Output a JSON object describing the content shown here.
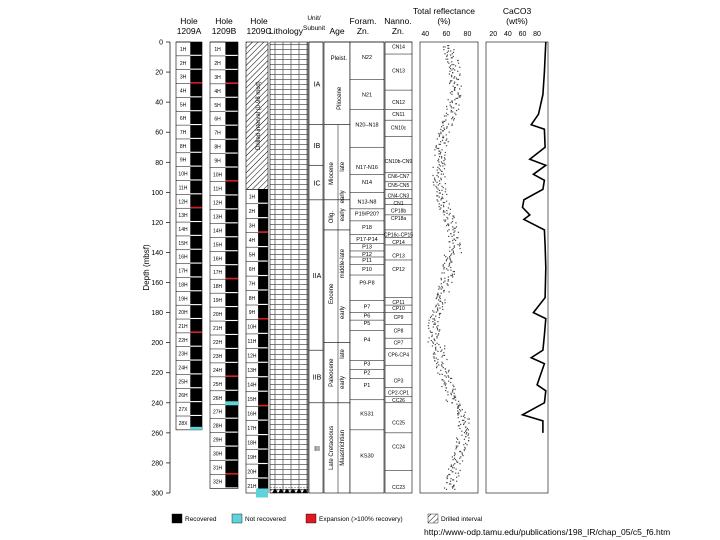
{
  "headers": {
    "hole_a": "Hole 1209A",
    "hole_b": "Hole 1209B",
    "hole_c": "Hole 1209C",
    "lithology": "Lithology",
    "unit_subunit": "Unit/ Subunit",
    "age": "Age",
    "foram_zn": "Foram. Zn.",
    "nanno_zn": "Nanno. Zn.",
    "total_reflectance": "Total reflectance (%)",
    "caco3": "CaCO3 (wt%)"
  },
  "depth_axis": {
    "label": "Depth (mbsf)",
    "ticks": [
      "0",
      "20",
      "40",
      "60",
      "80",
      "100",
      "120",
      "140",
      "160",
      "180",
      "200",
      "220",
      "240",
      "260",
      "280",
      "300"
    ]
  },
  "reflectance_ticks": [
    "40",
    "60",
    "80"
  ],
  "caco3_ticks": [
    "20",
    "40",
    "60",
    "80"
  ],
  "drilled_interval_label": "Drilled interval (0-98 mcd)",
  "cores": {
    "hole_a": [
      "1H",
      "2H",
      "3H",
      "4H",
      "5H",
      "6H",
      "7H",
      "8H",
      "9H",
      "10H",
      "11H",
      "12H",
      "13H",
      "14H",
      "15H",
      "16H",
      "17H",
      "18H",
      "19H",
      "20H",
      "21H",
      "22H",
      "23H",
      "24H",
      "25H",
      "26H",
      "27X",
      "28X"
    ],
    "hole_b": [
      "1H",
      "2H",
      "3H",
      "4H",
      "5H",
      "6H",
      "7H",
      "8H",
      "9H",
      "10H",
      "11H",
      "12H",
      "13H",
      "14H",
      "15H",
      "16H",
      "17H",
      "18H",
      "19H",
      "20H",
      "21H",
      "22H",
      "23H",
      "24H",
      "25H",
      "26H",
      "27H",
      "28H",
      "29H",
      "30H",
      "31H",
      "32H"
    ],
    "hole_c": [
      "1H",
      "2H",
      "3H",
      "4H",
      "5H",
      "6H",
      "7H",
      "8H",
      "9H",
      "10H",
      "11H",
      "12H",
      "13H",
      "14H",
      "15H",
      "16H",
      "17H",
      "18H",
      "19H",
      "20H",
      "21H"
    ]
  },
  "units": [
    "IA",
    "IB",
    "IC",
    "IIA",
    "IIB",
    "III"
  ],
  "ages": {
    "pleist": "Pleist.",
    "pliocene": "Pliocene",
    "miocene": "Miocene",
    "mio_late": "late",
    "mio_early": "early",
    "oligocene": "Olig.",
    "olig_early": "early",
    "eocene": "Eocene",
    "eoc_middle_late": "middle-late",
    "eoc_early": "early",
    "paleocene": "Paleocene",
    "pal_late": "late",
    "pal_early": "early",
    "late_cretaceous": "Late Cretaceous",
    "maastrichtian": "Maastrichtian"
  },
  "foram_zones": [
    "N22",
    "N21",
    "N20–N18",
    "N17-N16",
    "N14",
    "N13-N8",
    "P19/P20?",
    "P18",
    "P17-P14",
    "P13",
    "P12",
    "P11",
    "P10",
    "P9-P8",
    "P7",
    "P6",
    "P5",
    "P4",
    "P3",
    "P2",
    "P1",
    "KS31",
    "KS30"
  ],
  "nanno_zones": [
    "CN14",
    "CN13",
    "CN12",
    "CN11",
    "CN10c",
    "CN10b-CN9",
    "CN6-CN7",
    "CN5-CN5",
    "CN4-CN3",
    "CN1",
    "CP18b",
    "CP18a",
    "CP16c-CP15",
    "CP14",
    "CP13",
    "CP12",
    "CP11",
    "CP10",
    "CP9",
    "CP8",
    "CP7",
    "CP6-CP4",
    "CP3",
    "CP2-CP1",
    "CC26",
    "CC25",
    "CC24",
    "CC23"
  ],
  "legend": {
    "recovered": "Recovered",
    "not_recovered": "Not recovered",
    "expansion": "Expansion (>100% recovery)",
    "drilled": "Drilled interval"
  },
  "colors": {
    "recovered": "#000000",
    "not_recovered": "#5fd4d8",
    "expansion": "#e0191e"
  },
  "url": "http://www-odp.tamu.edu/publications/198_IR/chap_05/c5_f6.htm"
}
